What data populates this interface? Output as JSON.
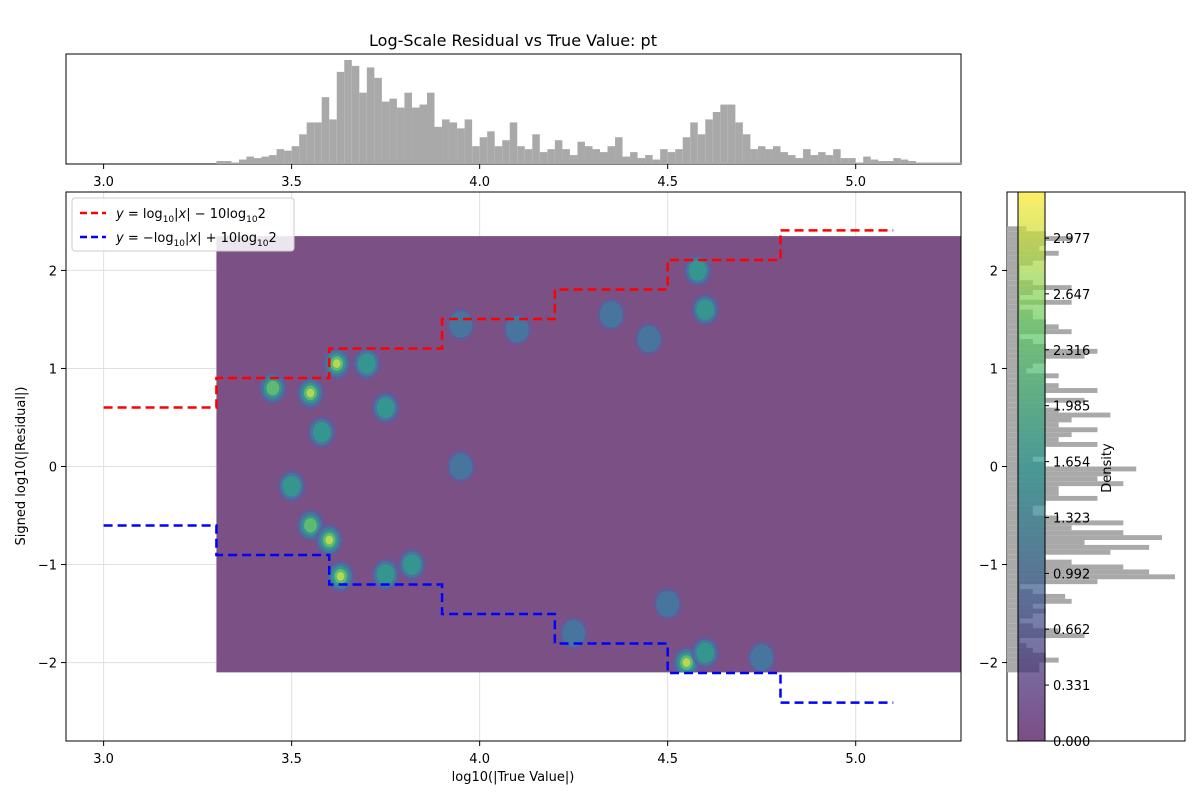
{
  "chart_data": {
    "type": "scatter",
    "title": "Log-Scale Residual vs True Value: pt",
    "xlabel": "log10(|True Value|)",
    "ylabel": "Signed log10(|Residual|)",
    "xlim": [
      2.9,
      5.28
    ],
    "ylim": [
      -2.8,
      2.8
    ],
    "x_ticks": [
      "3.0",
      "3.5",
      "4.0",
      "4.5",
      "5.0"
    ],
    "y_ticks": [
      "−2",
      "−1",
      "0",
      "1",
      "2"
    ],
    "grid": true,
    "legend_position": "upper-left",
    "legend": [
      {
        "label_tex": [
          "y",
          " = log",
          "10",
          "|",
          "x",
          "| − 10log",
          "10",
          "2"
        ],
        "color": "#ff0000"
      },
      {
        "label_tex": [
          "y",
          " = −log",
          "10",
          "|",
          "x",
          "| + 10log",
          "10",
          "2"
        ],
        "color": "#0000ff"
      }
    ],
    "upper_bound_steps": [
      [
        3.0,
        3.3,
        0.602
      ],
      [
        3.3,
        3.6,
        0.903
      ],
      [
        3.6,
        3.9,
        1.204
      ],
      [
        3.9,
        4.2,
        1.505
      ],
      [
        4.2,
        4.5,
        1.806
      ],
      [
        4.5,
        4.8,
        2.107
      ],
      [
        4.8,
        5.1,
        2.408
      ]
    ],
    "lower_bound_steps": [
      [
        3.0,
        3.3,
        -0.602
      ],
      [
        3.3,
        3.6,
        -0.903
      ],
      [
        3.6,
        3.9,
        -1.204
      ],
      [
        3.9,
        4.2,
        -1.505
      ],
      [
        4.2,
        4.5,
        -1.806
      ],
      [
        4.5,
        4.8,
        -2.107
      ],
      [
        4.8,
        5.1,
        -2.408
      ]
    ],
    "density_extent": {
      "x": [
        3.3,
        5.28
      ],
      "y": [
        -2.1,
        2.35
      ]
    },
    "density_hotspots": [
      [
        3.45,
        0.8,
        0.7
      ],
      [
        3.55,
        0.75,
        1.0
      ],
      [
        3.62,
        1.05,
        0.9
      ],
      [
        3.7,
        1.05,
        0.6
      ],
      [
        3.58,
        0.35,
        0.5
      ],
      [
        3.75,
        0.6,
        0.5
      ],
      [
        3.5,
        -0.2,
        0.5
      ],
      [
        3.55,
        -0.6,
        0.8
      ],
      [
        3.6,
        -0.75,
        1.0
      ],
      [
        3.63,
        -1.12,
        0.9
      ],
      [
        3.75,
        -1.1,
        0.6
      ],
      [
        3.82,
        -1.0,
        0.5
      ],
      [
        3.95,
        0.0,
        0.3
      ],
      [
        3.95,
        1.45,
        0.4
      ],
      [
        4.1,
        1.4,
        0.3
      ],
      [
        4.35,
        1.55,
        0.4
      ],
      [
        4.45,
        1.3,
        0.4
      ],
      [
        4.58,
        2.0,
        0.6
      ],
      [
        4.6,
        1.6,
        0.5
      ],
      [
        4.55,
        -2.0,
        0.9
      ],
      [
        4.6,
        -1.9,
        0.6
      ],
      [
        4.5,
        -1.4,
        0.4
      ],
      [
        4.25,
        -1.7,
        0.4
      ],
      [
        4.75,
        -1.95,
        0.4
      ]
    ],
    "marginal_x": {
      "bins_start": 3.3,
      "bin_width": 0.02,
      "counts": [
        2,
        2,
        1,
        3,
        5,
        4,
        5,
        6,
        10,
        9,
        12,
        20,
        28,
        28,
        45,
        30,
        62,
        70,
        66,
        48,
        65,
        58,
        42,
        44,
        38,
        48,
        38,
        40,
        48,
        25,
        30,
        28,
        24,
        30,
        12,
        18,
        22,
        12,
        16,
        28,
        12,
        10,
        20,
        8,
        10,
        16,
        10,
        6,
        15,
        12,
        10,
        8,
        12,
        18,
        5,
        8,
        4,
        6,
        3,
        10,
        8,
        10,
        18,
        28,
        20,
        30,
        35,
        40,
        40,
        28,
        20,
        10,
        12,
        10,
        12,
        8,
        6,
        4,
        10,
        6,
        8,
        6,
        10,
        4,
        4,
        1,
        5,
        3,
        2,
        2,
        4,
        3,
        2,
        1,
        1,
        1,
        1,
        1,
        1,
        1,
        2,
        2,
        1,
        2,
        1,
        0,
        3,
        1
      ]
    },
    "marginal_y": {
      "bins_start": -2.1,
      "bin_width": 0.05,
      "counts": [
        5,
        5,
        8,
        6,
        4,
        3,
        2,
        12,
        8,
        4,
        2,
        4,
        6,
        4,
        10,
        9,
        4,
        2,
        14,
        26,
        22,
        18,
        10,
        6,
        16,
        22,
        12,
        24,
        18,
        10,
        18,
        8,
        4,
        4,
        6,
        14,
        8,
        8,
        18,
        14,
        16,
        20,
        6,
        4,
        6,
        6,
        14,
        8,
        10,
        14,
        8,
        10,
        16,
        8,
        6,
        12,
        6,
        14,
        8,
        6,
        8,
        3,
        4,
        6,
        12,
        14,
        6,
        4,
        2,
        10,
        8,
        6,
        4,
        4,
        2,
        10,
        2,
        4,
        10,
        4,
        2,
        2,
        2,
        4,
        6,
        8,
        5,
        6,
        10,
        6,
        3
      ]
    },
    "colorbar": {
      "label": "Density",
      "tick_labels": [
        "0.000",
        "0.331",
        "0.662",
        "0.992",
        "1.323",
        "1.654",
        "1.985",
        "2.316",
        "2.647",
        "2.977"
      ],
      "tick_values": [
        0.0,
        0.331,
        0.662,
        0.992,
        1.323,
        1.654,
        1.985,
        2.316,
        2.647,
        2.977
      ],
      "vmin": 0.0,
      "vmax": 3.25
    }
  },
  "colors": {
    "upper": "#ff0000",
    "lower": "#0000ff",
    "density_base": "#7a5085",
    "hist_bar": "#a9a9a9",
    "grid": "#e0e0e0"
  }
}
